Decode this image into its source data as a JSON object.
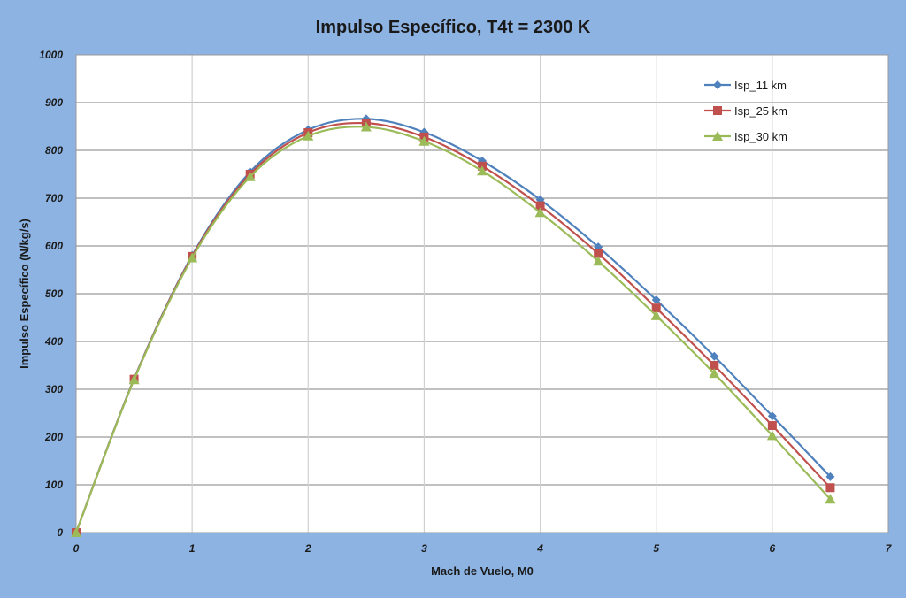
{
  "chart_data": {
    "type": "line",
    "title": "Impulso Específico, T4t = 2300 K",
    "xlabel": "Mach de Vuelo, M0",
    "ylabel": "Impulso Específico (N/kg/s)",
    "xlim": [
      0,
      7
    ],
    "ylim": [
      0,
      1000
    ],
    "xticks": [
      "0",
      "1",
      "2",
      "3",
      "4",
      "5",
      "6",
      "7"
    ],
    "yticks": [
      "0",
      "100",
      "200",
      "300",
      "400",
      "500",
      "600",
      "700",
      "800",
      "900",
      "1000"
    ],
    "grid": true,
    "smooth": true,
    "legend_position": "top-right",
    "x": [
      0,
      0.5,
      1,
      1.5,
      2,
      2.5,
      3,
      3.5,
      4,
      4.5,
      5,
      5.5,
      6,
      6.5
    ],
    "series": [
      {
        "name": "Isp_11 km",
        "color": "#4f81bd",
        "marker": "diamond",
        "values": [
          0,
          322,
          580,
          755,
          843,
          866,
          838,
          778,
          697,
          598,
          487,
          369,
          244,
          117
        ]
      },
      {
        "name": "Isp_25 km",
        "color": "#c0504d",
        "marker": "square",
        "values": [
          0,
          321,
          578,
          750,
          837,
          857,
          828,
          767,
          684,
          584,
          470,
          350,
          224,
          94
        ]
      },
      {
        "name": "Isp_30 km",
        "color": "#9bbb59",
        "marker": "triangle",
        "values": [
          0,
          320,
          575,
          745,
          830,
          849,
          819,
          757,
          670,
          568,
          454,
          333,
          203,
          70
        ]
      }
    ]
  }
}
